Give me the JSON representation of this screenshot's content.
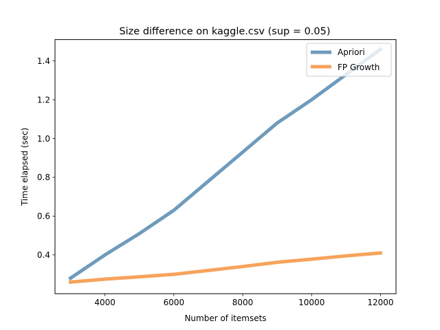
{
  "chart_data": {
    "type": "line",
    "title": "Size difference on kaggle.csv (sup = 0.05)",
    "xlabel": "Number of itemsets",
    "ylabel": "Time elapsed (sec)",
    "xlim": [
      2550,
      12450
    ],
    "ylim": [
      0.2,
      1.51
    ],
    "xticks": [
      4000,
      6000,
      8000,
      10000,
      12000
    ],
    "yticks": [
      0.4,
      0.6,
      0.8,
      1.0,
      1.2,
      1.4
    ],
    "xtick_labels": [
      "4000",
      "6000",
      "8000",
      "10000",
      "12000"
    ],
    "ytick_labels": [
      "0.4",
      "0.6",
      "0.8",
      "1.0",
      "1.2",
      "1.4"
    ],
    "grid": false,
    "legend_position": "top-right",
    "series": [
      {
        "name": "Apriori",
        "color": "#6f9bbc",
        "x": [
          3000,
          4000,
          5000,
          6000,
          7000,
          8000,
          9000,
          10000,
          11000,
          12000
        ],
        "y": [
          0.28,
          0.4,
          0.51,
          0.63,
          0.78,
          0.93,
          1.08,
          1.2,
          1.33,
          1.46
        ]
      },
      {
        "name": "FP Growth",
        "color": "#f7a35c",
        "x": [
          3000,
          4000,
          5000,
          6000,
          7000,
          8000,
          9000,
          10000,
          11000,
          12000
        ],
        "y": [
          0.26,
          0.275,
          0.287,
          0.3,
          0.32,
          0.34,
          0.362,
          0.378,
          0.395,
          0.41
        ]
      }
    ]
  }
}
